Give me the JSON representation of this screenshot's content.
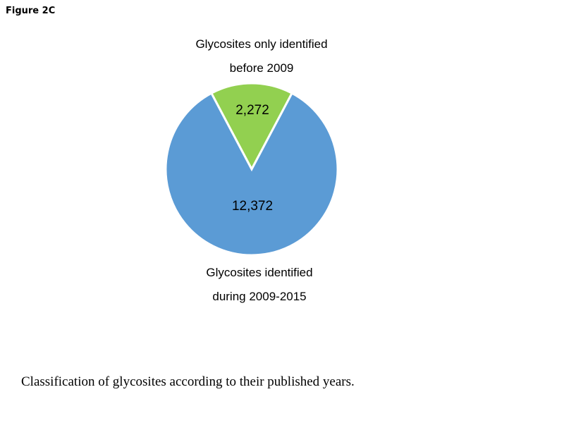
{
  "figure_label": "Figure 2C",
  "caption": "Classification of glycosites according to their published years.",
  "chart_data": {
    "type": "pie",
    "title": "",
    "slices": [
      {
        "label_lines": [
          "Glycosites only identified",
          "before 2009"
        ],
        "value": 2272,
        "value_label": "2,272",
        "color": "#92D050"
      },
      {
        "label_lines": [
          "Glycosites identified",
          "during 2009-2015"
        ],
        "value": 12372,
        "value_label": "12,372",
        "color": "#5B9BD5"
      }
    ],
    "legend": "none"
  }
}
